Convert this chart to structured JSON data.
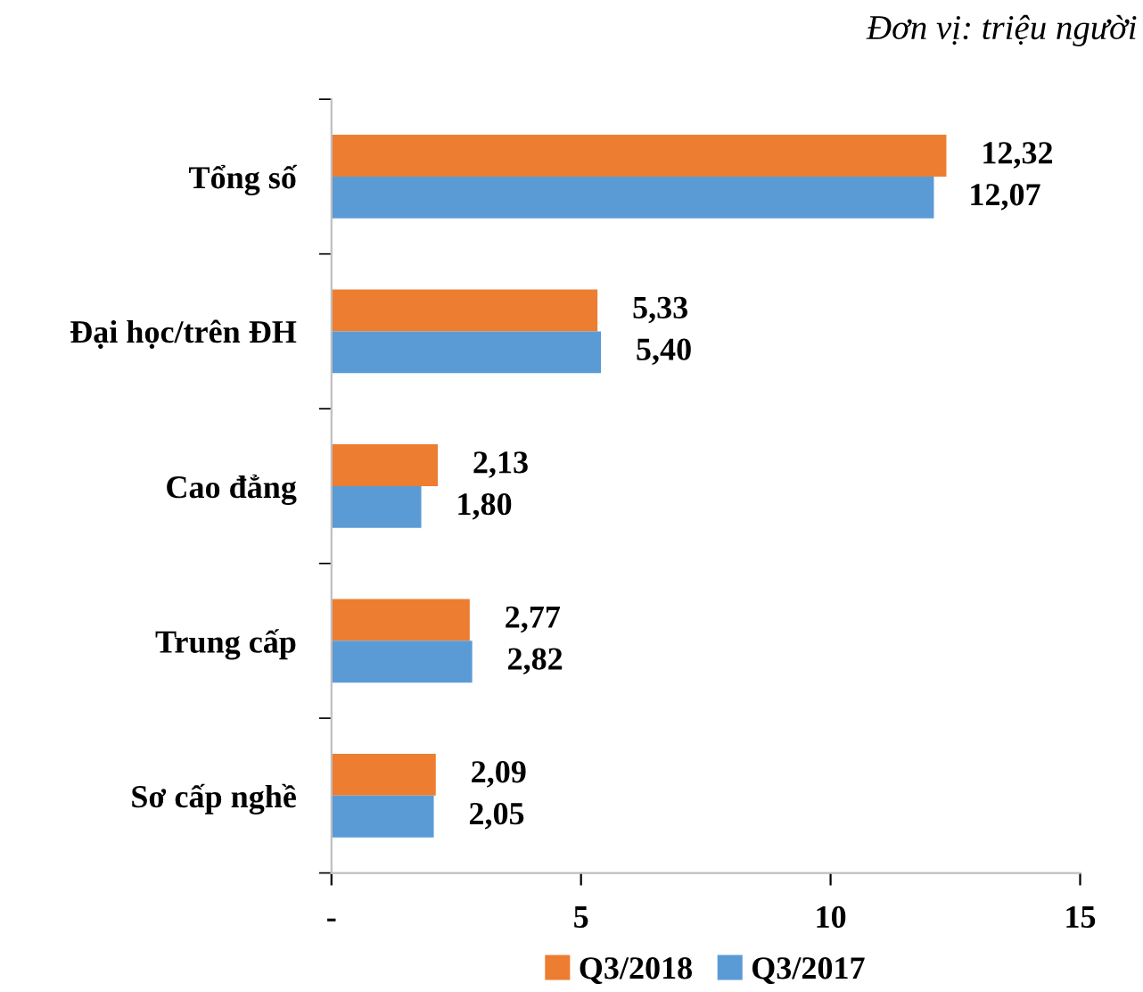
{
  "chart_data": {
    "type": "bar",
    "orientation": "horizontal",
    "categories": [
      "Tổng số",
      "Đại học/trên ĐH",
      "Cao đẳng",
      "Trung cấp",
      "Sơ cấp nghề"
    ],
    "series": [
      {
        "name": "Q3/2018",
        "color": "#ed7d31",
        "values": [
          12.32,
          5.33,
          2.13,
          2.77,
          2.09
        ],
        "value_labels": [
          "12,32",
          "5,33",
          "2,13",
          "2,77",
          "2,09"
        ]
      },
      {
        "name": "Q3/2017",
        "color": "#5b9bd5",
        "values": [
          12.07,
          5.4,
          1.8,
          2.82,
          2.05
        ],
        "value_labels": [
          "12,07",
          "5,40",
          "1,80",
          "2,82",
          "2,05"
        ]
      }
    ],
    "xlim": [
      0,
      15
    ],
    "xticks": [
      {
        "value": 0,
        "label": "-"
      },
      5,
      10,
      15
    ],
    "annotations": [
      "Đơn vị: triệu người"
    ],
    "grid": false,
    "legend": "bottom"
  }
}
